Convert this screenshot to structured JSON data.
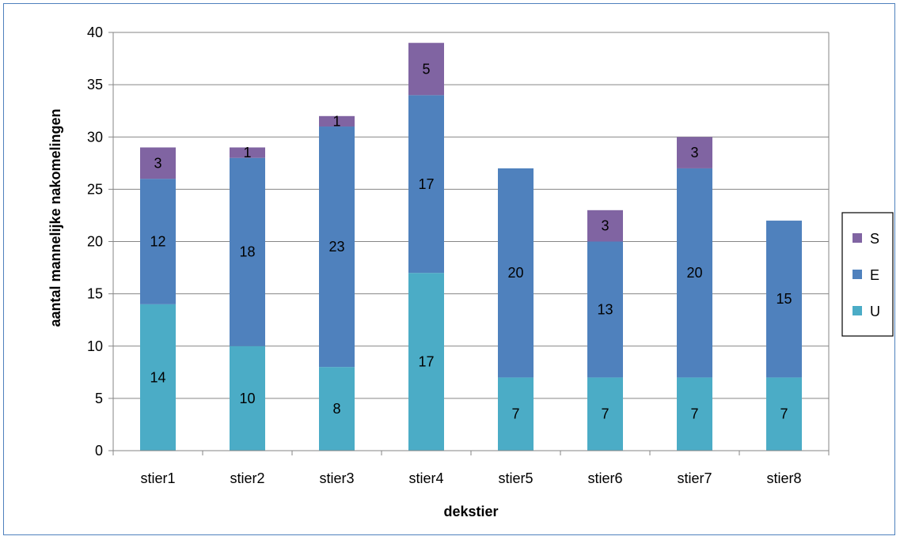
{
  "chart_data": {
    "type": "bar",
    "stacked": true,
    "categories": [
      "stier1",
      "stier2",
      "stier3",
      "stier4",
      "stier5",
      "stier6",
      "stier7",
      "stier8"
    ],
    "series": [
      {
        "name": "U",
        "color": "#4BACC6",
        "values": [
          14,
          10,
          8,
          17,
          7,
          7,
          7,
          7
        ],
        "labels": [
          "14",
          "10",
          "8",
          "17",
          "7",
          "7",
          "7",
          "7"
        ]
      },
      {
        "name": "E",
        "color": "#4F81BD",
        "values": [
          12,
          18,
          23,
          17,
          20,
          13,
          20,
          15
        ],
        "labels": [
          "12",
          "18",
          "23",
          "17",
          "20",
          "13",
          "20",
          "15"
        ]
      },
      {
        "name": "S",
        "color": "#8064A2",
        "values": [
          3,
          1,
          1,
          5,
          0,
          3,
          3,
          0
        ],
        "labels": [
          "3",
          "1",
          "1",
          "5",
          "",
          "3",
          "3",
          ""
        ]
      }
    ],
    "xlabel": "dekstier",
    "ylabel": "aantal mannelijke nakomelingen",
    "ylim": [
      0,
      40
    ],
    "yticks": [
      "0",
      "5",
      "10",
      "15",
      "20",
      "25",
      "30",
      "35",
      "40"
    ],
    "grid": true,
    "legend_position": "right",
    "legend_order": [
      "S",
      "E",
      "U"
    ]
  }
}
